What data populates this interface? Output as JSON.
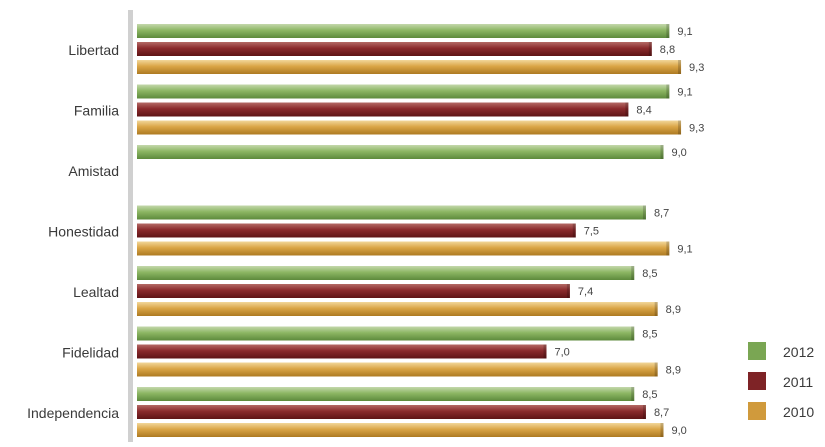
{
  "chart_data": {
    "type": "bar",
    "orientation": "horizontal",
    "categories": [
      "Libertad",
      "Familia",
      "Amistad",
      "Honestidad",
      "Lealtad",
      "Fidelidad",
      "Independencia"
    ],
    "series": [
      {
        "name": "2012",
        "color": "#7aa653",
        "values": [
          9.1,
          9.1,
          9.0,
          8.7,
          8.5,
          8.5,
          8.5
        ],
        "labels": [
          "9,1",
          "9,1",
          "9,0",
          "8,7",
          "8,5",
          "8,5",
          "8,5"
        ]
      },
      {
        "name": "2011",
        "color": "#7e2326",
        "values": [
          8.8,
          8.4,
          null,
          7.5,
          7.4,
          7.0,
          8.7
        ],
        "labels": [
          "8,8",
          "8,4",
          "",
          "7,5",
          "7,4",
          "7,0",
          "8,7"
        ]
      },
      {
        "name": "2010",
        "color": "#d09a3c",
        "values": [
          9.3,
          9.3,
          null,
          9.1,
          8.9,
          8.9,
          9.0
        ],
        "labels": [
          "9,3",
          "9,3",
          "",
          "9,1",
          "8,9",
          "8,9",
          "9,0"
        ]
      }
    ],
    "xlim": [
      0,
      10
    ],
    "legend_position": "bottom-right",
    "grid": false,
    "title": "",
    "xlabel": "",
    "ylabel": ""
  }
}
